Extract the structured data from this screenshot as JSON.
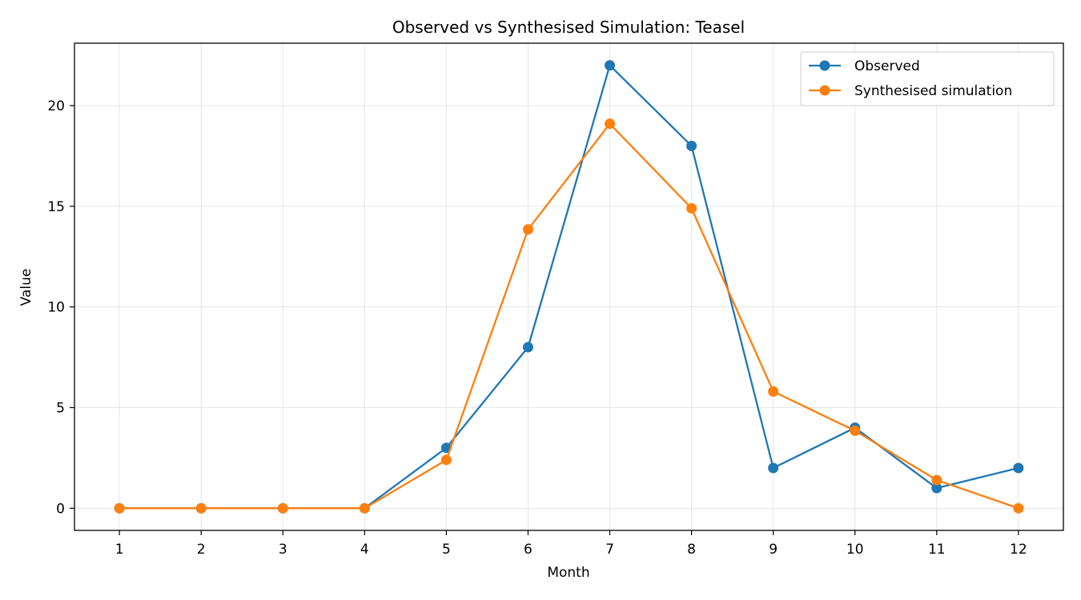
{
  "chart_data": {
    "type": "line",
    "title": "Observed vs Synthesised Simulation: Teasel",
    "xlabel": "Month",
    "ylabel": "Value",
    "x": [
      1,
      2,
      3,
      4,
      5,
      6,
      7,
      8,
      9,
      10,
      11,
      12
    ],
    "x_ticks": [
      "1",
      "2",
      "3",
      "4",
      "5",
      "6",
      "7",
      "8",
      "9",
      "10",
      "11",
      "12"
    ],
    "y_ticks": [
      "0",
      "5",
      "10",
      "15",
      "20"
    ],
    "xlim": [
      0.45,
      12.55
    ],
    "ylim": [
      -1.1,
      23.1
    ],
    "grid": true,
    "legend_position": "top-right",
    "series": [
      {
        "name": "Observed",
        "color": "#1f77b4",
        "values": [
          0,
          0,
          0,
          0,
          3,
          8,
          22,
          18,
          2,
          4,
          1,
          2
        ]
      },
      {
        "name": "Synthesised simulation",
        "color": "#ff7f0e",
        "values": [
          0,
          0,
          0,
          0,
          2.4,
          13.85,
          19.1,
          14.9,
          5.8,
          3.85,
          1.4,
          0
        ]
      }
    ]
  }
}
